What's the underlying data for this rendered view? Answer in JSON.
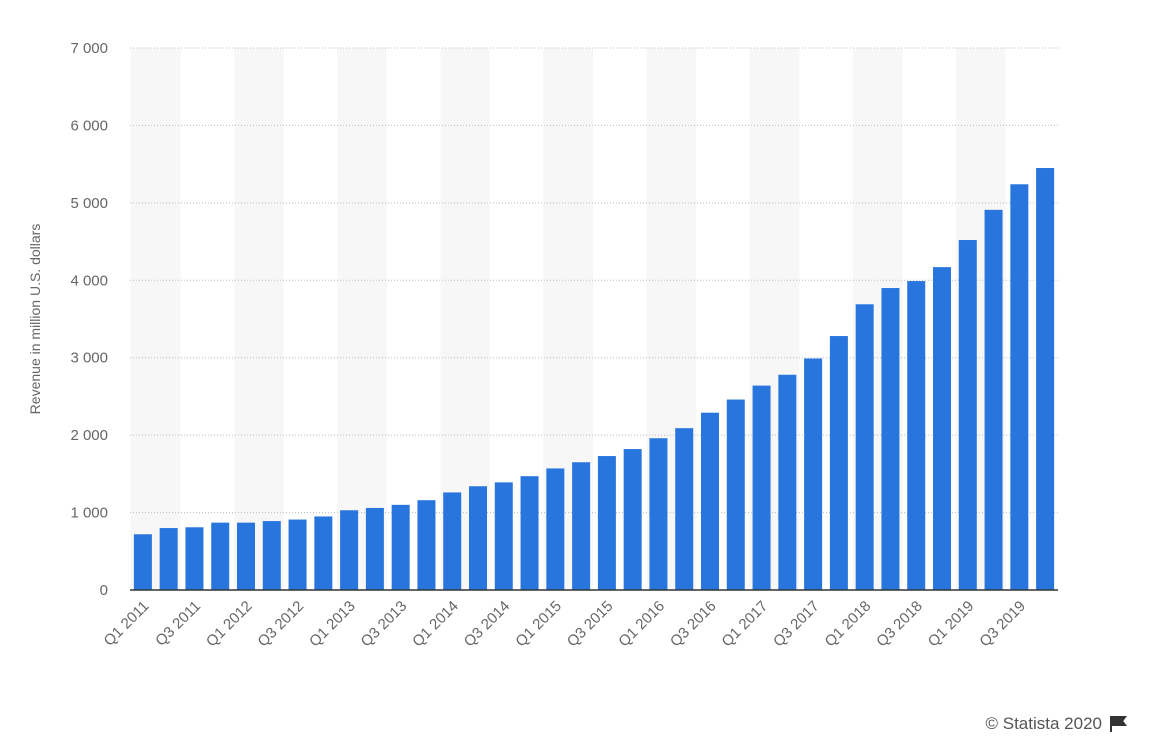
{
  "chart_data": {
    "type": "bar",
    "y_label": "Revenue in million U.S. dollars",
    "source": "© Statista 2020",
    "categories": [
      "Q1 2011",
      null,
      "Q3 2011",
      null,
      "Q1 2012",
      null,
      "Q3 2012",
      null,
      "Q1 2013",
      null,
      "Q3 2013",
      null,
      "Q1 2014",
      null,
      "Q3 2014",
      null,
      "Q1 2015",
      null,
      "Q3 2015",
      null,
      "Q1 2016",
      null,
      "Q3 2016",
      null,
      "Q1 2017",
      null,
      "Q3 2017",
      null,
      "Q1 2018",
      null,
      "Q3 2018",
      null,
      "Q1 2019",
      null,
      "Q3 2019",
      null
    ],
    "values": [
      720,
      800,
      810,
      870,
      870,
      890,
      910,
      950,
      1030,
      1060,
      1100,
      1160,
      1260,
      1340,
      1390,
      1470,
      1570,
      1650,
      1730,
      1820,
      1960,
      2090,
      2290,
      2460,
      2640,
      2780,
      2990,
      3280,
      3690,
      3900,
      3990,
      4170,
      4520,
      4910,
      5240,
      5450
    ],
    "color": "#2876dd",
    "ylim": [
      0,
      7000
    ],
    "yticks": [
      0,
      {
        "value": 1000,
        "label": "1 000"
      },
      {
        "value": 2000,
        "label": "2 000"
      },
      {
        "value": 3000,
        "label": "3 000"
      },
      {
        "value": 4000,
        "label": "4 000"
      },
      {
        "value": 5000,
        "label": "5 000"
      },
      {
        "value": 6000,
        "label": "6 000"
      },
      {
        "value": 7000,
        "label": "7 000"
      }
    ],
    "grid": true
  }
}
